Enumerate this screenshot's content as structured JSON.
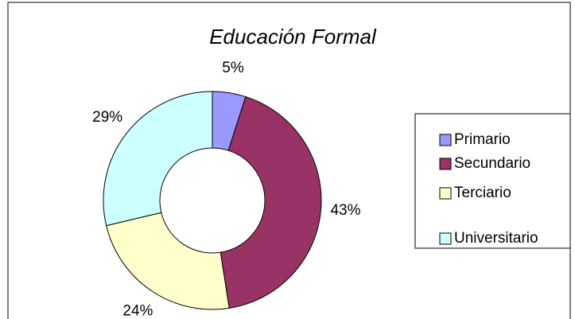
{
  "chart_data": {
    "type": "doughnut",
    "title": "Educación Formal",
    "categories": [
      "Primario",
      "Secundario",
      "Terciario",
      "Universitario"
    ],
    "values": [
      5,
      43,
      24,
      29
    ],
    "value_labels": [
      "5%",
      "43%",
      "24%",
      "29%"
    ],
    "colors": [
      "#9999ff",
      "#993366",
      "#ffffcc",
      "#ccffff"
    ],
    "legend": "right"
  }
}
